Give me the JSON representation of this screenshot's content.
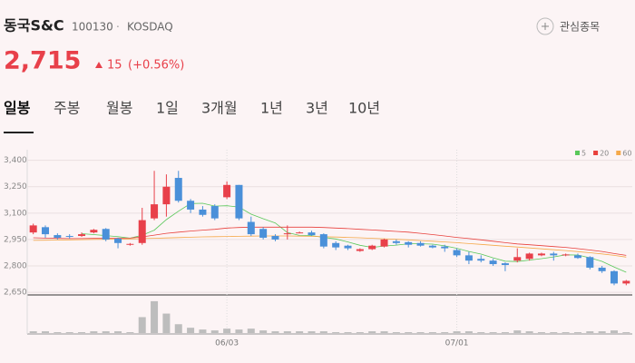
{
  "header": {
    "name": "동국S&C",
    "code": "100130",
    "market": "KOSDAQ",
    "price": "2,715",
    "change": "15",
    "change_pct": "(+0.56%)"
  },
  "watchlist_button": "관심종목",
  "tabs": [
    "일봉",
    "주봉",
    "월봉",
    "1일",
    "3개월",
    "1년",
    "3년",
    "10년"
  ],
  "chart_data": {
    "type": "candlestick",
    "categories": [
      null,
      null,
      null,
      null,
      null,
      null,
      null,
      null,
      null,
      null,
      null,
      null,
      null,
      null,
      null,
      null,
      "06/03",
      null,
      null,
      null,
      null,
      null,
      null,
      null,
      null,
      null,
      null,
      null,
      null,
      null,
      null,
      null,
      null,
      null,
      null,
      "07/01",
      null,
      null,
      null,
      null,
      null,
      null,
      null,
      null,
      null,
      null,
      null,
      null,
      null,
      null
    ],
    "open": [
      2990,
      3020,
      2975,
      2970,
      2970,
      2990,
      3010,
      2955,
      2920,
      2930,
      3070,
      3150,
      3300,
      3170,
      3120,
      3140,
      3190,
      3260,
      3050,
      3010,
      2970,
      2980,
      2990,
      2990,
      2980,
      2930,
      2915,
      2885,
      2895,
      2910,
      2940,
      2935,
      2930,
      2915,
      2910,
      2890,
      2860,
      2840,
      2830,
      2815,
      2830,
      2840,
      2860,
      2870,
      2860,
      2860,
      2850,
      2790,
      2770,
      2700
    ],
    "high": [
      3040,
      3030,
      2985,
      2980,
      2990,
      3010,
      3015,
      2960,
      2930,
      3130,
      3340,
      3320,
      3340,
      3180,
      3140,
      3150,
      3280,
      3260,
      3080,
      3020,
      2980,
      3030,
      2995,
      3000,
      2985,
      2940,
      2920,
      2900,
      2920,
      2955,
      2950,
      2940,
      2940,
      2920,
      2920,
      2900,
      2880,
      2860,
      2840,
      2820,
      2900,
      2875,
      2875,
      2880,
      2870,
      2870,
      2855,
      2800,
      2775,
      2720
    ],
    "low": [
      2980,
      2960,
      2950,
      2955,
      2965,
      2985,
      2940,
      2900,
      2915,
      2920,
      3060,
      3080,
      3160,
      3100,
      3080,
      3060,
      3180,
      3060,
      2970,
      2950,
      2940,
      2950,
      2985,
      2970,
      2900,
      2890,
      2890,
      2880,
      2890,
      2905,
      2920,
      2905,
      2910,
      2900,
      2880,
      2850,
      2810,
      2820,
      2800,
      2770,
      2820,
      2830,
      2855,
      2830,
      2855,
      2840,
      2780,
      2760,
      2690,
      2690
    ],
    "close": [
      3030,
      2980,
      2960,
      2965,
      2980,
      3005,
      2950,
      2930,
      2925,
      3060,
      3150,
      3250,
      3170,
      3120,
      3090,
      3070,
      3260,
      3070,
      2980,
      2960,
      2950,
      2985,
      2990,
      2975,
      2910,
      2905,
      2900,
      2895,
      2915,
      2950,
      2930,
      2920,
      2915,
      2905,
      2900,
      2860,
      2830,
      2830,
      2810,
      2805,
      2850,
      2870,
      2870,
      2860,
      2865,
      2845,
      2790,
      2770,
      2700,
      2715
    ],
    "volume": [
      2,
      2,
      1,
      1,
      1,
      2,
      2,
      2,
      1,
      18,
      36,
      22,
      10,
      6,
      4,
      3,
      5,
      4,
      5,
      3,
      2,
      2,
      2,
      2,
      2,
      1,
      1,
      1,
      2,
      2,
      1,
      1,
      1,
      1,
      1,
      2,
      2,
      1,
      1,
      1,
      3,
      2,
      1,
      1,
      1,
      1,
      2,
      2,
      3,
      1
    ],
    "volume_lim": [
      0,
      40
    ],
    "series": [
      {
        "name": "5",
        "color": "#5ac85a",
        "values": [
          null,
          null,
          null,
          null,
          2983,
          2978,
          2972,
          2966,
          2958,
          2974,
          3003,
          3063,
          3111,
          3154,
          3156,
          3140,
          3142,
          3134,
          3094,
          3068,
          3044,
          2989,
          2973,
          2972,
          2962,
          2953,
          2936,
          2917,
          2905,
          2913,
          2918,
          2926,
          2926,
          2924,
          2914,
          2900,
          2882,
          2867,
          2846,
          2827,
          2825,
          2833,
          2841,
          2851,
          2863,
          2862,
          2846,
          2826,
          2794,
          2764
        ]
      },
      {
        "name": "20",
        "color": "#e8403c",
        "values": [
          2960,
          2958,
          2956,
          2955,
          2955,
          2956,
          2956,
          2957,
          2958,
          2965,
          2975,
          2985,
          2992,
          2998,
          3003,
          3008,
          3015,
          3018,
          3020,
          3020,
          3020,
          3020,
          3020,
          3020,
          3018,
          3015,
          3012,
          3008,
          3004,
          3000,
          2996,
          2992,
          2985,
          2978,
          2970,
          2962,
          2955,
          2948,
          2940,
          2932,
          2925,
          2920,
          2915,
          2910,
          2905,
          2898,
          2890,
          2882,
          2870,
          2860
        ]
      },
      {
        "name": "60",
        "color": "#f5a94a",
        "values": [
          2945,
          2946,
          2947,
          2948,
          2949,
          2950,
          2951,
          2952,
          2953,
          2955,
          2957,
          2959,
          2961,
          2963,
          2965,
          2966,
          2967,
          2968,
          2969,
          2970,
          2970,
          2970,
          2969,
          2968,
          2966,
          2964,
          2962,
          2960,
          2957,
          2954,
          2951,
          2948,
          2944,
          2940,
          2936,
          2932,
          2927,
          2922,
          2917,
          2912,
          2907,
          2902,
          2897,
          2892,
          2887,
          2881,
          2875,
          2868,
          2860,
          2850
        ]
      }
    ],
    "up_color": "#e8404a",
    "down_color": "#4a90d9",
    "volume_color": "#bdbdbd",
    "ylim": [
      2635,
      3460
    ],
    "yticks": [
      {
        "value": 2650,
        "label": "2,650"
      },
      {
        "value": 2800,
        "label": "2,800"
      },
      {
        "value": 2950,
        "label": "2,950"
      },
      {
        "value": 3100,
        "label": "3,100"
      },
      {
        "value": 3250,
        "label": "3,250"
      },
      {
        "value": 3400,
        "label": "3,400"
      }
    ],
    "grid": true
  }
}
